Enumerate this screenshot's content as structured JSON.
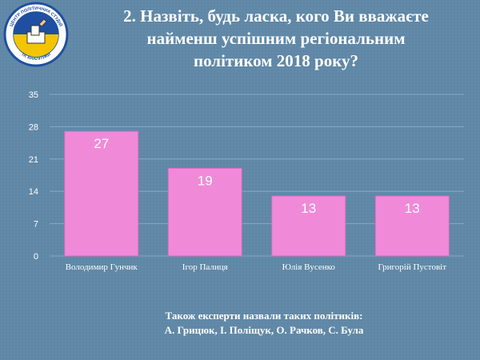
{
  "title": {
    "line1": "2. Назвіть, будь ласка, кого Ви вважаєте",
    "line2": "найменш успішним регіональним",
    "line3": "політиком 2018 року?"
  },
  "logo": {
    "top_text": "ЦЕНТР ПОЛІТИЧНИХ СТУДІЙ",
    "bottom_text": "ТА АНАЛІТИКИ",
    "colors": {
      "blue": "#1f4fa0",
      "yellow": "#f2c500"
    }
  },
  "colors": {
    "background": "#5f87a6",
    "bar": "#f08ad8",
    "bar_stroke": "#d86cc0",
    "gridline": "#8aa9c0",
    "text": "#ffffff"
  },
  "chart_data": {
    "type": "bar",
    "categories": [
      "Володимир Гунчик",
      "Ігор Палиця",
      "Юлія Вусенко",
      "Григорій Пустовіт"
    ],
    "values": [
      27,
      19,
      13,
      13
    ],
    "ylim": [
      0,
      35
    ],
    "yticks": [
      0,
      7,
      14,
      21,
      28,
      35
    ],
    "grid": true,
    "data_labels": true,
    "legend": "none"
  },
  "footnote": {
    "line1": "Також експерти назвали таких політиків:",
    "line2": "А. Грицюк, І. Поліщук, О. Рачков, С. Була"
  }
}
